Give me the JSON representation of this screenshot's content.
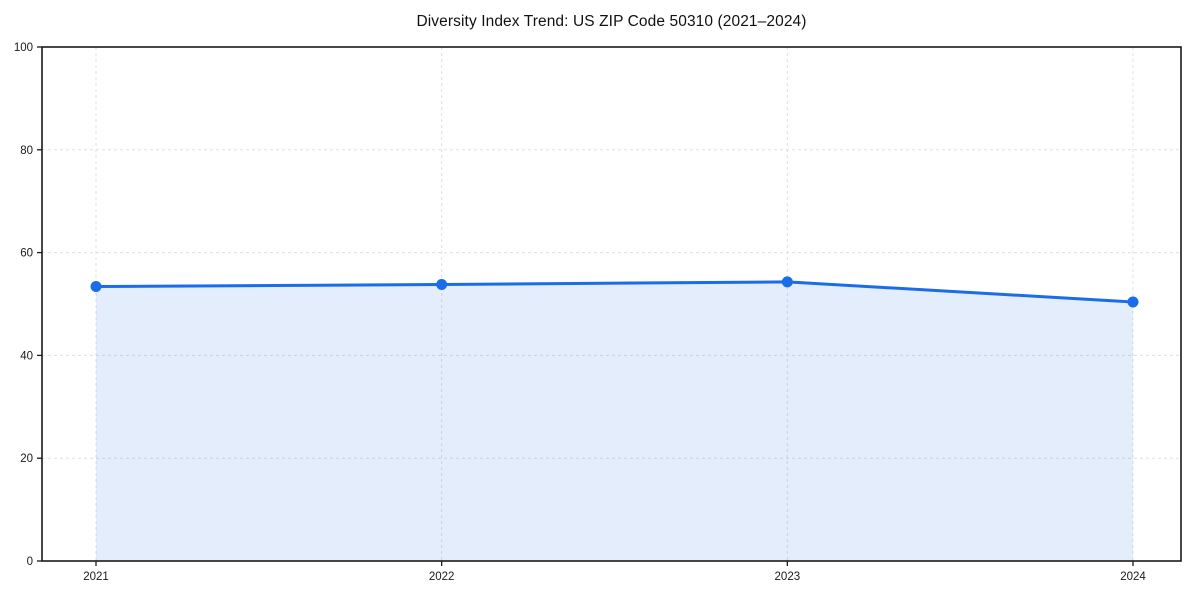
{
  "figure": {
    "background": "#ffffff"
  },
  "chart_data": {
    "type": "line",
    "title": "Diversity Index Trend: US ZIP Code 50310 (2021–2024)",
    "categories": [
      "2021",
      "2022",
      "2023",
      "2024"
    ],
    "series": [
      {
        "name": "Diversity Index",
        "values": [
          53.4,
          53.8,
          54.3,
          50.4
        ],
        "color": "#1a6ce8",
        "marker": "circle",
        "area_fill": true
      }
    ],
    "xlabel": "",
    "ylabel": "",
    "ylim": [
      0,
      100
    ],
    "yticks": [
      0,
      20,
      40,
      60,
      80,
      100
    ],
    "grid": {
      "horizontal": true,
      "vertical": true,
      "style": "dashed",
      "color": "#e0e0e0"
    },
    "legend": "none",
    "colors": {
      "line": "#1a6ce8",
      "area": "#1a6ce8",
      "area_opacity": 0.12,
      "axis": "#1a1a1a",
      "tick_label": "#1a1a1a",
      "background": "#ffffff"
    }
  }
}
